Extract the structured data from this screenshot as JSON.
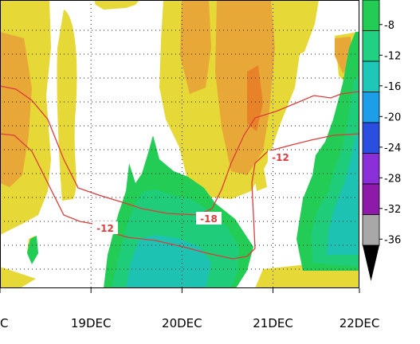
{
  "chart_data": {
    "type": "heatmap",
    "x_tick_labels": [
      "C",
      "19DEC",
      "20DEC",
      "21DEC",
      "22DEC"
    ],
    "x_tick_positions_days": [
      18.0,
      19.0,
      20.0,
      21.0,
      22.0
    ],
    "x_range_days": [
      18.0,
      21.95
    ],
    "y_range": [
      0,
      1
    ],
    "grid": "dotted",
    "colorbar": {
      "placement": "right",
      "tick_labels": [
        "-8",
        "-12",
        "-16",
        "-20",
        "-24",
        "-28",
        "-32",
        "-36"
      ],
      "levels": [
        {
          "range": [
            -8,
            -6
          ],
          "color": "#22cc55"
        },
        {
          "range": [
            -12,
            -8
          ],
          "color": "#22d083"
        },
        {
          "range": [
            -16,
            -12
          ],
          "color": "#1ec7b8"
        },
        {
          "range": [
            -20,
            -16
          ],
          "color": "#1c9ee8"
        },
        {
          "range": [
            -24,
            -20
          ],
          "color": "#2a4fe0"
        },
        {
          "range": [
            -28,
            -24
          ],
          "color": "#8b2fd8"
        },
        {
          "range": [
            -32,
            -28
          ],
          "color": "#8d1aa8"
        },
        {
          "range": [
            -36,
            -32
          ],
          "color": "#a8a8a8"
        },
        {
          "range": [
            -40,
            -36
          ],
          "color": "#000000"
        }
      ]
    },
    "contour_labels": [
      "-12",
      "-18",
      "-12"
    ],
    "colors": {
      "yellow": "#e6d836",
      "orange": "#e8a838",
      "dark_orange": "#e88228",
      "green_light": "#22cc55",
      "green": "#1fcc7a",
      "teal": "#1ec2b2",
      "contour": "#dd3b3b"
    }
  }
}
